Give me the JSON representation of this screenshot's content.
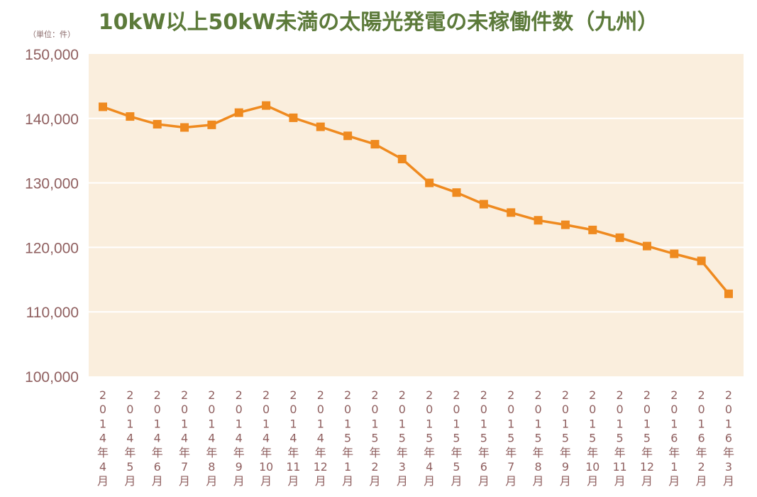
{
  "chart_data": {
    "type": "line",
    "title": "10kW以上50kW未満の太陽光発電の未稼働件数（九州）",
    "unit_label": "（単位：件）",
    "xlabel": "",
    "ylabel": "",
    "ylim": [
      100000,
      150000
    ],
    "yticks": [
      100000,
      110000,
      120000,
      130000,
      140000,
      150000
    ],
    "ytick_labels": [
      "100,000",
      "110,000",
      "120,000",
      "130,000",
      "140,000",
      "150,000"
    ],
    "grid": true,
    "legend": "none",
    "colors": {
      "plot_bg": "#faeedd",
      "line": "#ef8a1f",
      "grid": "#ffffff",
      "tick": "#8f5f5f",
      "title": "#5c7a3a"
    },
    "categories": [
      "2014年4月",
      "2014年5月",
      "2014年6月",
      "2014年7月",
      "2014年8月",
      "2014年9月",
      "2014年10月",
      "2014年11月",
      "2014年12月",
      "2015年1月",
      "2015年2月",
      "2015年3月",
      "2015年4月",
      "2015年5月",
      "2015年6月",
      "2015年7月",
      "2015年8月",
      "2015年9月",
      "2015年10月",
      "2015年11月",
      "2015年12月",
      "2016年1月",
      "2016年2月",
      "2016年3月"
    ],
    "tick_chars": [
      [
        "2",
        "0",
        "1",
        "4",
        "年",
        "4",
        "月"
      ],
      [
        "2",
        "0",
        "1",
        "4",
        "年",
        "5",
        "月"
      ],
      [
        "2",
        "0",
        "1",
        "4",
        "年",
        "6",
        "月"
      ],
      [
        "2",
        "0",
        "1",
        "4",
        "年",
        "7",
        "月"
      ],
      [
        "2",
        "0",
        "1",
        "4",
        "年",
        "8",
        "月"
      ],
      [
        "2",
        "0",
        "1",
        "4",
        "年",
        "9",
        "月"
      ],
      [
        "2",
        "0",
        "1",
        "4",
        "年",
        "10",
        "月"
      ],
      [
        "2",
        "0",
        "1",
        "4",
        "年",
        "11",
        "月"
      ],
      [
        "2",
        "0",
        "1",
        "4",
        "年",
        "12",
        "月"
      ],
      [
        "2",
        "0",
        "1",
        "5",
        "年",
        "1",
        "月"
      ],
      [
        "2",
        "0",
        "1",
        "5",
        "年",
        "2",
        "月"
      ],
      [
        "2",
        "0",
        "1",
        "5",
        "年",
        "3",
        "月"
      ],
      [
        "2",
        "0",
        "1",
        "5",
        "年",
        "4",
        "月"
      ],
      [
        "2",
        "0",
        "1",
        "5",
        "年",
        "5",
        "月"
      ],
      [
        "2",
        "0",
        "1",
        "5",
        "年",
        "6",
        "月"
      ],
      [
        "2",
        "0",
        "1",
        "5",
        "年",
        "7",
        "月"
      ],
      [
        "2",
        "0",
        "1",
        "5",
        "年",
        "8",
        "月"
      ],
      [
        "2",
        "0",
        "1",
        "5",
        "年",
        "9",
        "月"
      ],
      [
        "2",
        "0",
        "1",
        "5",
        "年",
        "10",
        "月"
      ],
      [
        "2",
        "0",
        "1",
        "5",
        "年",
        "11",
        "月"
      ],
      [
        "2",
        "0",
        "1",
        "5",
        "年",
        "12",
        "月"
      ],
      [
        "2",
        "0",
        "1",
        "6",
        "年",
        "1",
        "月"
      ],
      [
        "2",
        "0",
        "1",
        "6",
        "年",
        "2",
        "月"
      ],
      [
        "2",
        "0",
        "1",
        "6",
        "年",
        "3",
        "月"
      ]
    ],
    "values": [
      141800,
      140300,
      139100,
      138600,
      139000,
      140900,
      142000,
      140100,
      138700,
      137300,
      136000,
      133700,
      130000,
      128500,
      126700,
      125400,
      124200,
      123500,
      122700,
      121500,
      120200,
      119000,
      117900,
      112800
    ]
  }
}
